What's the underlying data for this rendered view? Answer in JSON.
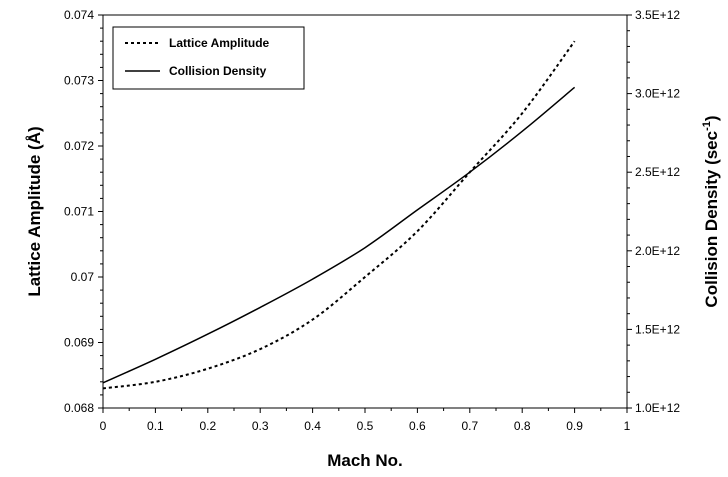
{
  "chart_data": {
    "type": "line",
    "title": "",
    "xlabel": "Mach No.",
    "ylabel": "Lattice Amplitude (Å)",
    "y2label_prefix": "Collision Density (sec",
    "y2label_sup": "-1",
    "y2label_suffix": ")",
    "xlim": [
      0,
      1
    ],
    "ylim": [
      0.068,
      0.074
    ],
    "y2lim": [
      1000000000000.0,
      3500000000000.0
    ],
    "x_ticks": [
      "0",
      "0.1",
      "0.2",
      "0.3",
      "0.4",
      "0.5",
      "0.6",
      "0.7",
      "0.8",
      "0.9",
      "1"
    ],
    "y_ticks": [
      "0.068",
      "0.069",
      "0.07",
      "0.071",
      "0.072",
      "0.073",
      "0.074"
    ],
    "y2_ticks": [
      "1.0E+12",
      "1.5E+12",
      "2.0E+12",
      "2.5E+12",
      "3.0E+12",
      "3.5E+12"
    ],
    "grid": false,
    "legend_position": "top-left",
    "series": [
      {
        "name": "Lattice Amplitude",
        "axis": "left",
        "style": "dashed",
        "x": [
          0,
          0.1,
          0.2,
          0.3,
          0.4,
          0.5,
          0.6,
          0.7,
          0.8,
          0.9
        ],
        "y": [
          0.0683,
          0.0684,
          0.0686,
          0.0689,
          0.06935,
          0.07,
          0.0707,
          0.0716,
          0.0725,
          0.0736
        ]
      },
      {
        "name": "Collision Density",
        "axis": "right",
        "style": "solid",
        "x": [
          0,
          0.1,
          0.2,
          0.3,
          0.4,
          0.5,
          0.6,
          0.7,
          0.8,
          0.9
        ],
        "y": [
          1160000000000.0,
          1310000000000.0,
          1470000000000.0,
          1640000000000.0,
          1820000000000.0,
          2020000000000.0,
          2260000000000.0,
          2500000000000.0,
          2760000000000.0,
          3040000000000.0
        ]
      }
    ]
  }
}
